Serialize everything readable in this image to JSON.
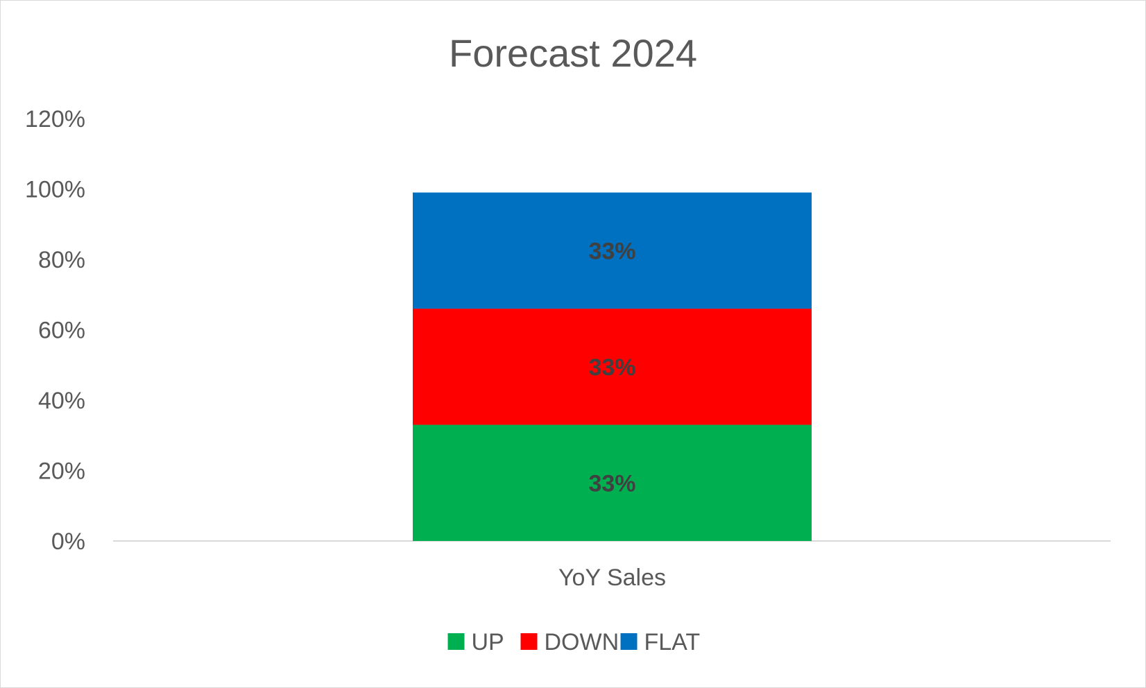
{
  "chart_data": {
    "type": "bar",
    "stacked": true,
    "title": "Forecast 2024",
    "categories": [
      "YoY Sales"
    ],
    "series": [
      {
        "name": "UP",
        "values": [
          0.33
        ],
        "color": "#00B050",
        "label": "33%"
      },
      {
        "name": "DOWN",
        "values": [
          0.33
        ],
        "color": "#FF0000",
        "label": "33%"
      },
      {
        "name": "FLAT",
        "values": [
          0.33
        ],
        "color": "#0070C0",
        "label": "33%"
      }
    ],
    "ylim": [
      0,
      1.2
    ],
    "yticks": [
      "0%",
      "20%",
      "40%",
      "60%",
      "80%",
      "100%",
      "120%"
    ],
    "ytick_values": [
      0,
      0.2,
      0.4,
      0.6,
      0.8,
      1.0,
      1.2
    ],
    "grid": false,
    "legend_position": "bottom",
    "xlabel": "",
    "ylabel": ""
  }
}
